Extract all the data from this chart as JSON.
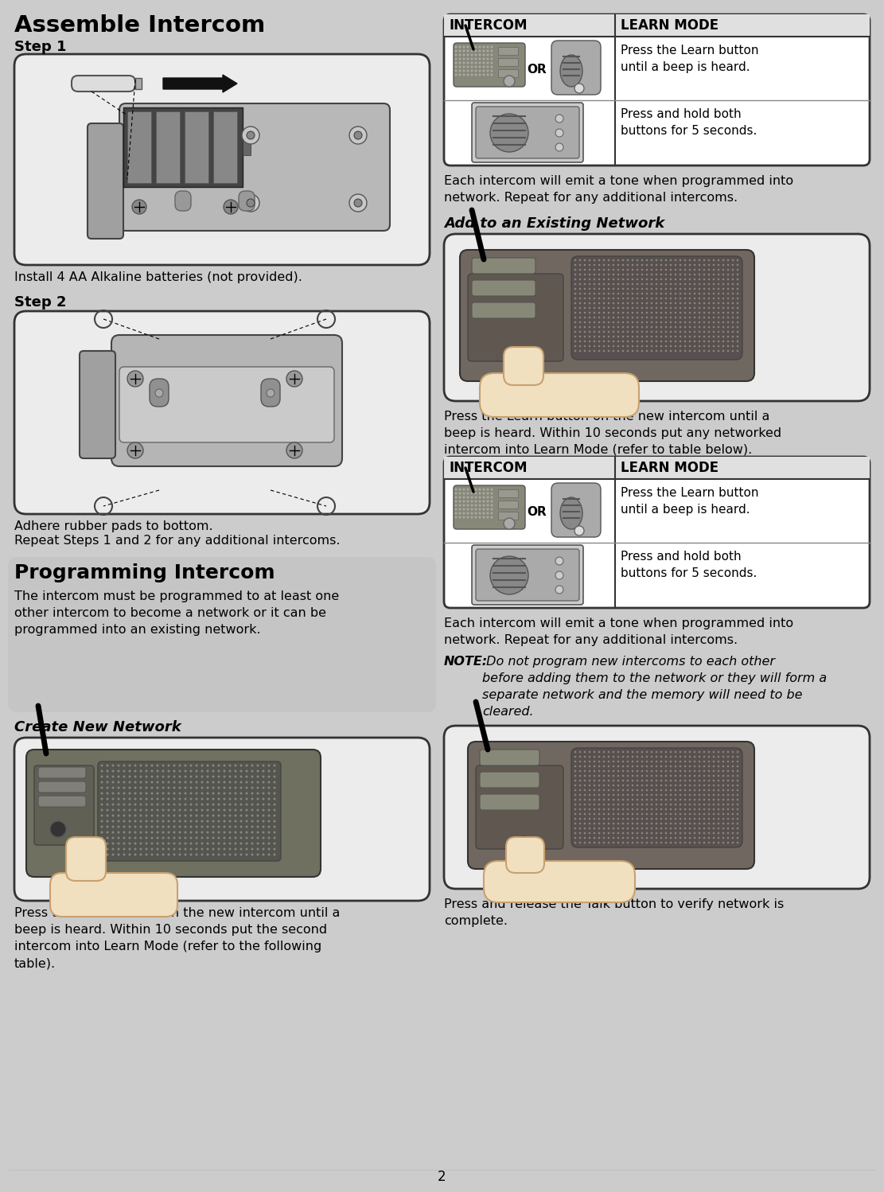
{
  "page_bg": "#cccccc",
  "white": "#ffffff",
  "black": "#000000",
  "light_gray_box": "#e0e0e0",
  "mid_gray": "#aaaaaa",
  "dark_gray": "#666666",
  "border_color": "#222222",
  "title_assemble": "Assemble Intercom",
  "title_programming": "Programming Intercom",
  "step1_label": "Step 1",
  "step2_label": "Step 2",
  "step1_text": "Install 4 AA Alkaline batteries (not provided).",
  "step2_text1": "Adhere rubber pads to bottom.",
  "step2_text2": "Repeat Steps 1 and 2 for any additional intercoms.",
  "programming_intro": "The intercom must be programmed to at least one\nother intercom to become a network or it can be\nprogrammed into an existing network.",
  "create_new_title": "Create New Network",
  "create_new_text": "Press the Learn button on the new intercom until a\nbeep is heard. Within 10 seconds put the second\nintercom into Learn Mode (refer to the following\ntable).",
  "add_existing_title": "Add to an Existing Network",
  "add_existing_text": "Press the Learn button on the new intercom until a\nbeep is heard. Within 10 seconds put any networked\nintercom into Learn Mode (refer to table below).",
  "talk_verify_text": "Press and release the Talk button to verify network is\ncomplete.",
  "intercom_col": "INTERCOM",
  "learn_mode_col": "LEARN MODE",
  "learn_row1_text": "Press the Learn button\nuntil a beep is heard.",
  "learn_row2_text": "Press and hold both\nbuttons for 5 seconds.",
  "or_text": "OR",
  "note_text_bold": "NOTE:",
  "note_text_rest": " Do not program new intercoms to each other\nbefore adding them to the network or they will form a\nseparate network and the memory will need to be\ncleared.",
  "each_intercom_text": "Each intercom will emit a tone when programmed into\nnetwork. Repeat for any additional intercoms.",
  "page_number": "2",
  "col_split": 537
}
